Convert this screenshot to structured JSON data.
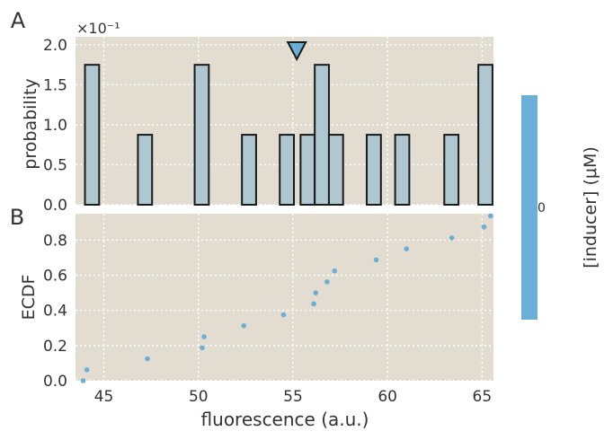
{
  "figure": {
    "panel_a_label": "A",
    "panel_b_label": "B",
    "exponent_label": "×10⁻¹",
    "colorbar_label": "[inducer] (μM)",
    "colorbar_tick": "0",
    "colors": {
      "panel_bg": "#e3dcd0",
      "hist_fill": "#aec7d0",
      "hist_edge": "#1a1a1a",
      "marker_fill": "#6baed6",
      "point_color": "#6baed6",
      "colorbar_fill": "#6baed6",
      "grid": "#ffffff"
    }
  },
  "chart_data": [
    {
      "type": "bar",
      "panel": "A",
      "ylabel": "probability",
      "ylim": [
        0,
        2.1
      ],
      "y_ticks": [
        0.0,
        0.5,
        1.0,
        1.5,
        2.0
      ],
      "y_tick_labels": [
        "0.0",
        "0.5",
        "1.0",
        "1.5",
        "2.0"
      ],
      "y_multiplier": "×10⁻¹",
      "xlim": [
        43.5,
        65.6
      ],
      "grid": true,
      "bin_edges": [
        44.0,
        44.75,
        46.8,
        47.55,
        49.8,
        50.55,
        52.3,
        53.05,
        54.3,
        55.05,
        55.4,
        56.15,
        56.9,
        57.65,
        58.9,
        59.65,
        60.4,
        61.15,
        63.0,
        63.75,
        64.8,
        65.55
      ],
      "bins": [
        {
          "left": 44.0,
          "right": 44.75,
          "value": 1.75
        },
        {
          "left": 46.8,
          "right": 47.55,
          "value": 0.875
        },
        {
          "left": 49.8,
          "right": 50.55,
          "value": 1.75
        },
        {
          "left": 52.3,
          "right": 53.05,
          "value": 0.875
        },
        {
          "left": 54.3,
          "right": 55.05,
          "value": 0.875
        },
        {
          "left": 55.4,
          "right": 56.15,
          "value": 0.875
        },
        {
          "left": 56.15,
          "right": 56.9,
          "value": 1.75
        },
        {
          "left": 56.9,
          "right": 57.65,
          "value": 0.875
        },
        {
          "left": 58.9,
          "right": 59.65,
          "value": 0.875
        },
        {
          "left": 60.4,
          "right": 61.15,
          "value": 0.875
        },
        {
          "left": 63.0,
          "right": 63.75,
          "value": 0.875
        },
        {
          "left": 64.8,
          "right": 65.55,
          "value": 1.75
        }
      ],
      "marker_x": 55.2
    },
    {
      "type": "scatter",
      "panel": "B",
      "xlabel": "fluorescence (a.u.)",
      "ylabel": "ECDF",
      "xlim": [
        43.5,
        65.6
      ],
      "ylim": [
        0.0,
        0.95
      ],
      "x_ticks": [
        45,
        50,
        55,
        60,
        65
      ],
      "x_tick_labels": [
        "45",
        "50",
        "55",
        "60",
        "65"
      ],
      "y_ticks": [
        0.0,
        0.2,
        0.4,
        0.6,
        0.8
      ],
      "y_tick_labels": [
        "0.0",
        "0.2",
        "0.4",
        "0.6",
        "0.8"
      ],
      "grid": true,
      "x": [
        43.9,
        44.1,
        47.3,
        50.2,
        50.3,
        52.4,
        54.5,
        56.1,
        56.2,
        56.8,
        57.2,
        59.4,
        61.0,
        63.4,
        65.1,
        65.45
      ],
      "y": [
        0.0,
        0.0625,
        0.125,
        0.1875,
        0.25,
        0.3125,
        0.375,
        0.4375,
        0.5,
        0.5625,
        0.625,
        0.6875,
        0.75,
        0.8125,
        0.875,
        0.9375
      ]
    }
  ]
}
